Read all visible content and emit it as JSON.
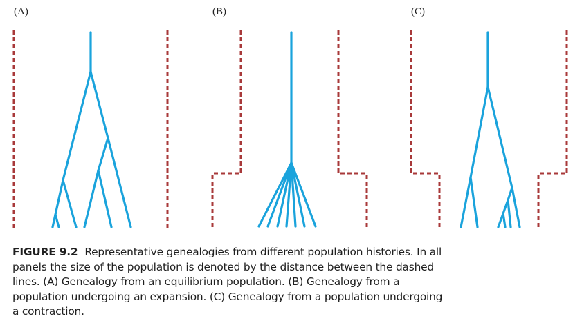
{
  "panels": [
    {
      "label": "(A)"
    },
    {
      "label": "(B)"
    },
    {
      "label": "(C)"
    }
  ],
  "colors": {
    "tree": "#1aa3dc",
    "boundary": "#a8393a",
    "text": "#1f1f1f"
  },
  "caption": {
    "figure_number": "FIGURE 9.2",
    "line1": "Representative genealogies from different population histories. In all",
    "line2": "panels the size of the population is denoted by the distance between the dashed",
    "line3": "lines. (A) Genealogy from an equilibrium population. (B) Genealogy from a",
    "line4": "population undergoing an expansion. (C) Genealogy from a population undergoing",
    "line5": "a contraction."
  }
}
